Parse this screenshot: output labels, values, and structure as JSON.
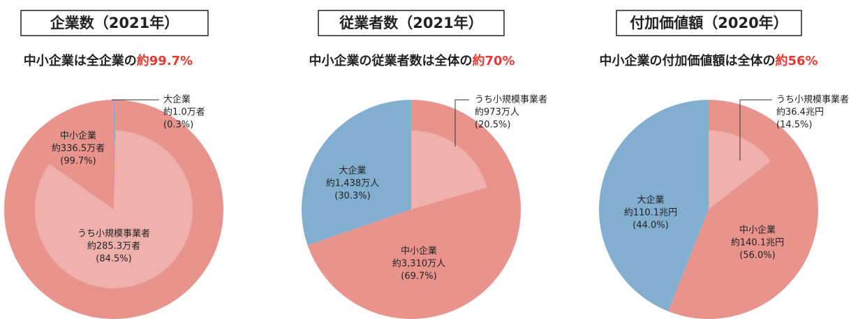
{
  "chart_data": [
    {
      "type": "pie",
      "title": "企業数（2021年）",
      "subtitle": "中小企業は全企業の",
      "subtitle_highlight": "約99.7%",
      "categories": [
        "大企業",
        "中小企業"
      ],
      "values": [
        0.3,
        99.7
      ],
      "value_labels": [
        "(0.3%)",
        "(99.7%)"
      ],
      "amount_labels": [
        "約1.0万者",
        "約336.5万者"
      ],
      "colors": [
        "#82aed0",
        "#e8948d"
      ],
      "inner": {
        "category": "うち小規模事業者",
        "value": 84.5,
        "value_label": "(84.5%)",
        "amount_label": "約285.3万者",
        "color": "#efb0ab"
      }
    },
    {
      "type": "pie",
      "title": "従業者数（2021年）",
      "subtitle": "中小企業の従業者数は全体の",
      "subtitle_highlight": "約70%",
      "categories": [
        "中小企業",
        "大企業"
      ],
      "values": [
        69.7,
        30.3
      ],
      "value_labels": [
        "(69.7%)",
        "(30.3%)"
      ],
      "amount_labels": [
        "約3,310万人",
        "約1,438万人"
      ],
      "colors": [
        "#e8948d",
        "#82aed0"
      ],
      "inner": {
        "category": "うち小規模事業者",
        "value": 20.5,
        "value_label": "(20.5%)",
        "amount_label": "約973万人",
        "color": "#efb0ab"
      }
    },
    {
      "type": "pie",
      "title": "付加価値額（2020年）",
      "subtitle": "中小企業の付加価値額は全体の",
      "subtitle_highlight": "約56%",
      "categories": [
        "中小企業",
        "大企業"
      ],
      "values": [
        56.0,
        44.0
      ],
      "value_labels": [
        "(56.0%)",
        "(44.0%)"
      ],
      "amount_labels": [
        "約140.1兆円",
        "約110.1兆円"
      ],
      "colors": [
        "#e8948d",
        "#82aed0"
      ],
      "inner": {
        "category": "うち小規模事業者",
        "value": 14.5,
        "value_label": "(14.5%)",
        "amount_label": "約36.4兆円",
        "color": "#efb0ab"
      }
    }
  ]
}
